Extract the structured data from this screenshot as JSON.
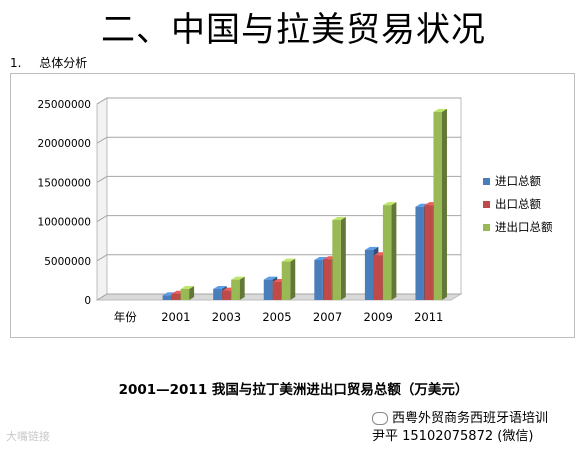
{
  "slide": {
    "title": "二、中国与拉美贸易状况",
    "section_number": "1.",
    "section_label": "总体分析",
    "caption": "2001—2011 我国与拉丁美洲进出口贸易总额（万美元）",
    "promo_line1": "西粤外贸商务西班牙语培训",
    "promo_line2": "尹平 15102075872 (微信)",
    "watermark": "大嘴链接"
  },
  "chart_data": {
    "type": "bar",
    "style": "3d-clustered",
    "categories": [
      "年份",
      "2001",
      "2003",
      "2005",
      "2007",
      "2009",
      "2011"
    ],
    "series": [
      {
        "name": "进口总额",
        "color": "#4a7ebb",
        "values": [
          0,
          600000,
          1400000,
          2600000,
          5100000,
          6400000,
          11900000
        ]
      },
      {
        "name": "出口总额",
        "color": "#be4b48",
        "values": [
          0,
          800000,
          1200000,
          2300000,
          5200000,
          5700000,
          12100000
        ]
      },
      {
        "name": "进出口总额",
        "color": "#98b954",
        "values": [
          0,
          1400000,
          2600000,
          4900000,
          10200000,
          12100000,
          24000000
        ]
      }
    ],
    "y_ticks": [
      "0",
      "5000000",
      "10000000",
      "15000000",
      "20000000",
      "25000000"
    ],
    "ylim": [
      0,
      25000000
    ],
    "grid": true,
    "legend_position": "right"
  }
}
